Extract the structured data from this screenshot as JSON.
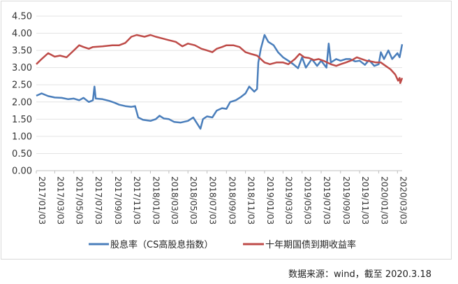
{
  "chart_data": {
    "type": "line",
    "ylim": [
      0,
      4.5
    ],
    "y_ticks": [
      "0.00",
      "0.50",
      "1.00",
      "1.50",
      "2.00",
      "2.50",
      "3.00",
      "3.50",
      "4.00",
      "4.50"
    ],
    "x_tick_labels": [
      "2017/01/03",
      "2017/03/03",
      "2017/05/03",
      "2017/07/03",
      "2017/09/03",
      "2017/11/03",
      "2018/01/03",
      "2018/03/03",
      "2018/05/03",
      "2018/07/03",
      "2018/09/03",
      "2018/11/03",
      "2019/01/03",
      "2019/03/03",
      "2019/05/03",
      "2019/07/03",
      "2019/09/03",
      "2019/11/03",
      "2020/01/03",
      "2020/03/03"
    ],
    "x_range": [
      "2017/01/03",
      "2020/03/18"
    ],
    "grid": "horizontal",
    "legend_position": "bottom",
    "series": [
      {
        "name": "股息率（CS高股息指数）",
        "color": "#4a7ebb",
        "points": [
          [
            "2017/01/03",
            2.18
          ],
          [
            "2017/01/20",
            2.25
          ],
          [
            "2017/02/10",
            2.17
          ],
          [
            "2017/03/03",
            2.13
          ],
          [
            "2017/03/25",
            2.12
          ],
          [
            "2017/04/15",
            2.08
          ],
          [
            "2017/05/03",
            2.1
          ],
          [
            "2017/05/20",
            2.05
          ],
          [
            "2017/06/03",
            2.12
          ],
          [
            "2017/06/20",
            2.0
          ],
          [
            "2017/07/03",
            2.05
          ],
          [
            "2017/07/08",
            2.45
          ],
          [
            "2017/07/12",
            2.1
          ],
          [
            "2017/08/03",
            2.08
          ],
          [
            "2017/08/25",
            2.03
          ],
          [
            "2017/09/10",
            1.98
          ],
          [
            "2017/09/25",
            1.92
          ],
          [
            "2017/10/15",
            1.88
          ],
          [
            "2017/11/03",
            1.86
          ],
          [
            "2017/11/15",
            1.88
          ],
          [
            "2017/11/25",
            1.55
          ],
          [
            "2017/12/10",
            1.48
          ],
          [
            "2018/01/03",
            1.45
          ],
          [
            "2018/01/20",
            1.5
          ],
          [
            "2018/02/01",
            1.6
          ],
          [
            "2018/02/15",
            1.52
          ],
          [
            "2018/03/03",
            1.5
          ],
          [
            "2018/03/20",
            1.42
          ],
          [
            "2018/04/10",
            1.4
          ],
          [
            "2018/05/03",
            1.45
          ],
          [
            "2018/05/20",
            1.55
          ],
          [
            "2018/06/05",
            1.32
          ],
          [
            "2018/06/12",
            1.22
          ],
          [
            "2018/06/20",
            1.5
          ],
          [
            "2018/07/03",
            1.58
          ],
          [
            "2018/07/20",
            1.55
          ],
          [
            "2018/08/03",
            1.75
          ],
          [
            "2018/08/20",
            1.82
          ],
          [
            "2018/09/03",
            1.8
          ],
          [
            "2018/09/15",
            2.0
          ],
          [
            "2018/10/03",
            2.05
          ],
          [
            "2018/10/20",
            2.15
          ],
          [
            "2018/11/03",
            2.25
          ],
          [
            "2018/11/15",
            2.45
          ],
          [
            "2018/12/01",
            2.3
          ],
          [
            "2018/12/10",
            2.38
          ],
          [
            "2018/12/14",
            3.15
          ],
          [
            "2018/12/22",
            3.55
          ],
          [
            "2019/01/03",
            3.95
          ],
          [
            "2019/01/15",
            3.75
          ],
          [
            "2019/02/01",
            3.65
          ],
          [
            "2019/02/15",
            3.45
          ],
          [
            "2019/03/03",
            3.3
          ],
          [
            "2019/03/20",
            3.2
          ],
          [
            "2019/04/05",
            3.1
          ],
          [
            "2019/04/20",
            2.98
          ],
          [
            "2019/05/03",
            3.3
          ],
          [
            "2019/05/15",
            3.0
          ],
          [
            "2019/06/03",
            3.25
          ],
          [
            "2019/06/20",
            3.05
          ],
          [
            "2019/07/03",
            3.2
          ],
          [
            "2019/07/20",
            3.0
          ],
          [
            "2019/07/27",
            3.7
          ],
          [
            "2019/08/03",
            3.15
          ],
          [
            "2019/08/20",
            3.25
          ],
          [
            "2019/09/03",
            3.2
          ],
          [
            "2019/09/20",
            3.25
          ],
          [
            "2019/10/03",
            3.25
          ],
          [
            "2019/10/20",
            3.18
          ],
          [
            "2019/11/03",
            3.2
          ],
          [
            "2019/11/20",
            3.08
          ],
          [
            "2019/12/03",
            3.22
          ],
          [
            "2019/12/20",
            3.05
          ],
          [
            "2020/01/03",
            3.1
          ],
          [
            "2020/01/10",
            3.45
          ],
          [
            "2020/01/20",
            3.25
          ],
          [
            "2020/02/03",
            3.5
          ],
          [
            "2020/02/15",
            3.25
          ],
          [
            "2020/03/03",
            3.42
          ],
          [
            "2020/03/10",
            3.3
          ],
          [
            "2020/03/18",
            3.68
          ]
        ]
      },
      {
        "name": "十年期国债到期收益率",
        "color": "#be4b48",
        "points": [
          [
            "2017/01/03",
            3.1
          ],
          [
            "2017/01/20",
            3.25
          ],
          [
            "2017/02/10",
            3.42
          ],
          [
            "2017/03/03",
            3.32
          ],
          [
            "2017/03/20",
            3.35
          ],
          [
            "2017/04/10",
            3.3
          ],
          [
            "2017/05/03",
            3.5
          ],
          [
            "2017/05/20",
            3.65
          ],
          [
            "2017/06/03",
            3.6
          ],
          [
            "2017/06/20",
            3.55
          ],
          [
            "2017/07/03",
            3.6
          ],
          [
            "2017/08/03",
            3.62
          ],
          [
            "2017/09/03",
            3.65
          ],
          [
            "2017/09/25",
            3.65
          ],
          [
            "2017/10/15",
            3.72
          ],
          [
            "2017/11/03",
            3.9
          ],
          [
            "2017/11/20",
            3.95
          ],
          [
            "2017/12/15",
            3.9
          ],
          [
            "2018/01/03",
            3.95
          ],
          [
            "2018/01/20",
            3.9
          ],
          [
            "2018/02/10",
            3.85
          ],
          [
            "2018/03/03",
            3.8
          ],
          [
            "2018/03/25",
            3.75
          ],
          [
            "2018/04/15",
            3.62
          ],
          [
            "2018/05/03",
            3.7
          ],
          [
            "2018/05/25",
            3.65
          ],
          [
            "2018/06/15",
            3.55
          ],
          [
            "2018/07/03",
            3.5
          ],
          [
            "2018/07/20",
            3.45
          ],
          [
            "2018/08/03",
            3.55
          ],
          [
            "2018/08/20",
            3.6
          ],
          [
            "2018/09/03",
            3.65
          ],
          [
            "2018/09/25",
            3.65
          ],
          [
            "2018/10/15",
            3.6
          ],
          [
            "2018/11/03",
            3.45
          ],
          [
            "2018/11/20",
            3.4
          ],
          [
            "2018/12/10",
            3.35
          ],
          [
            "2019/01/03",
            3.15
          ],
          [
            "2019/01/20",
            3.1
          ],
          [
            "2019/02/10",
            3.15
          ],
          [
            "2019/03/03",
            3.15
          ],
          [
            "2019/03/20",
            3.1
          ],
          [
            "2019/04/10",
            3.25
          ],
          [
            "2019/04/25",
            3.4
          ],
          [
            "2019/05/10",
            3.3
          ],
          [
            "2019/05/25",
            3.28
          ],
          [
            "2019/06/10",
            3.22
          ],
          [
            "2019/06/25",
            3.25
          ],
          [
            "2019/07/10",
            3.2
          ],
          [
            "2019/08/03",
            3.1
          ],
          [
            "2019/08/20",
            3.05
          ],
          [
            "2019/09/03",
            3.1
          ],
          [
            "2019/09/20",
            3.15
          ],
          [
            "2019/10/10",
            3.22
          ],
          [
            "2019/10/25",
            3.3
          ],
          [
            "2019/11/10",
            3.25
          ],
          [
            "2019/11/25",
            3.2
          ],
          [
            "2019/12/10",
            3.18
          ],
          [
            "2019/12/25",
            3.15
          ],
          [
            "2020/01/10",
            3.15
          ],
          [
            "2020/01/25",
            3.05
          ],
          [
            "2020/02/10",
            2.95
          ],
          [
            "2020/02/25",
            2.8
          ],
          [
            "2020/03/05",
            2.62
          ],
          [
            "2020/03/10",
            2.7
          ],
          [
            "2020/03/12",
            2.55
          ],
          [
            "2020/03/18",
            2.7
          ]
        ]
      }
    ]
  },
  "source_note": "数据来源：wind，截至 2020.3.18"
}
